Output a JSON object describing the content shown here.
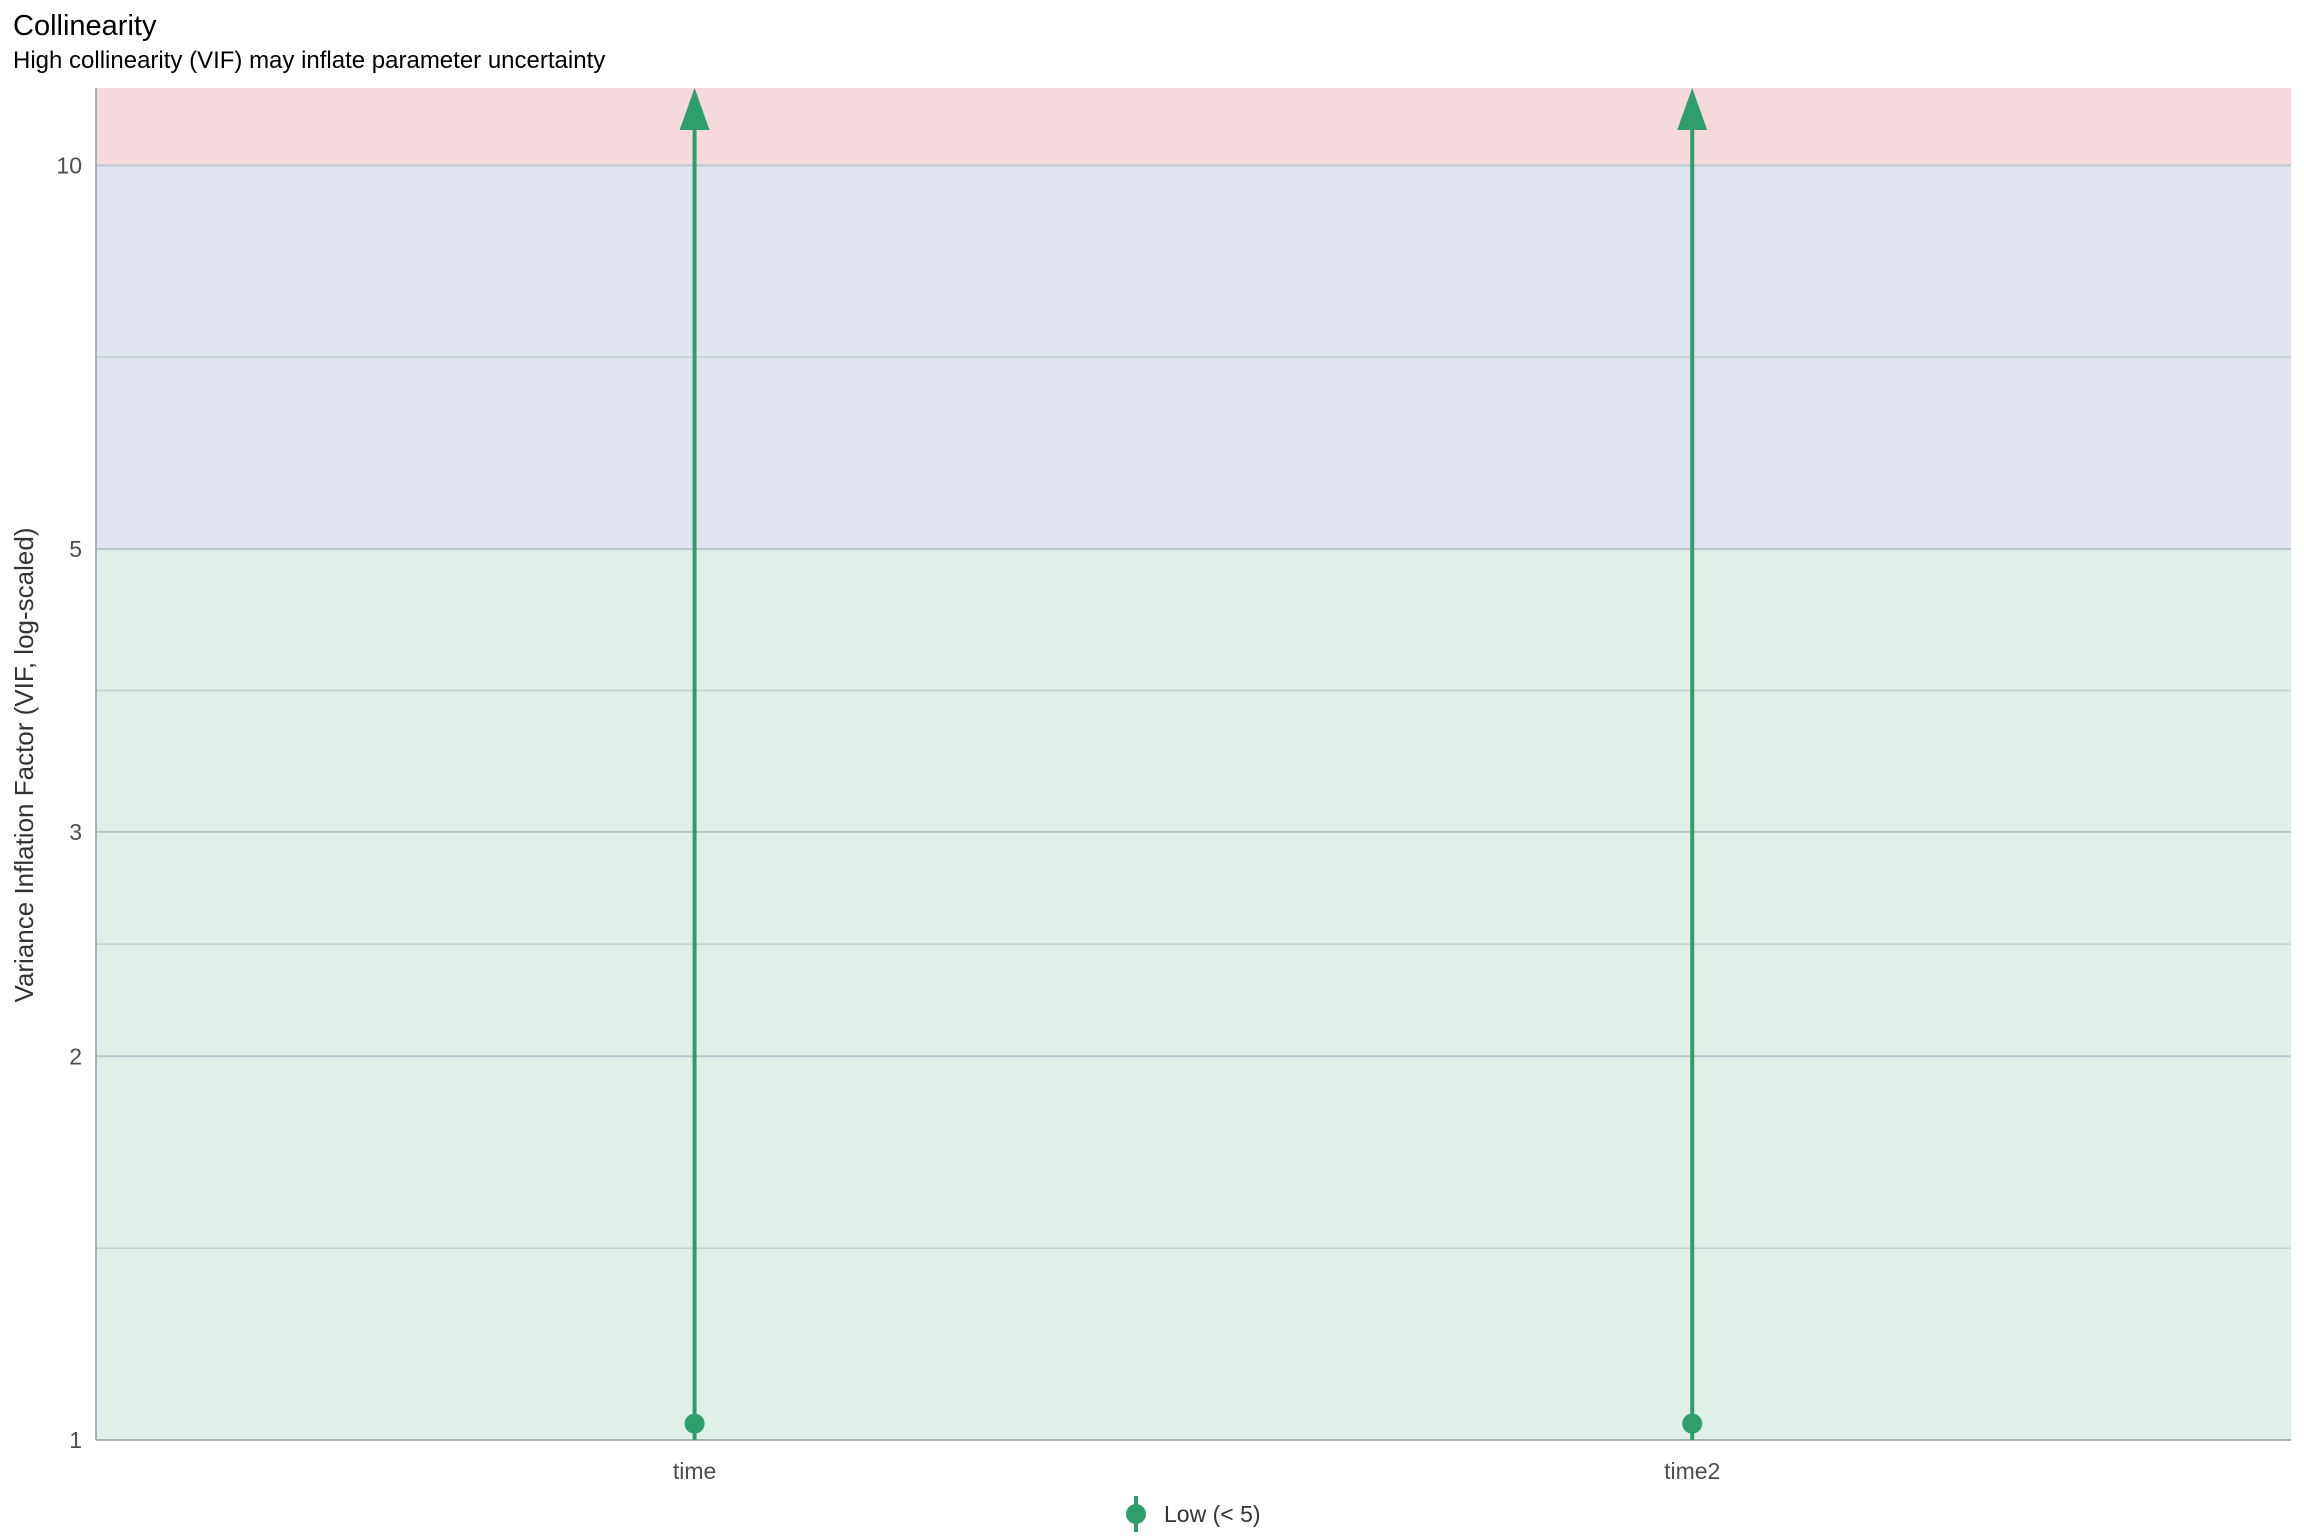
{
  "chart_data": {
    "type": "scatter",
    "title": "Collinearity",
    "subtitle": "High collinearity (VIF) may inflate parameter uncertainty",
    "xlabel": "",
    "ylabel": "Variance Inflation Factor (VIF, log-scaled)",
    "y_scale": "log",
    "ylim": [
      1,
      11.5
    ],
    "yticks": [
      1,
      2,
      3,
      5,
      10
    ],
    "y_minor_gridlines": [
      1.414,
      2.449,
      3.873,
      7.071
    ],
    "categories": [
      "time",
      "time2"
    ],
    "series": [
      {
        "name": "Low (< 5)",
        "color": "#2f9e6d",
        "points": [
          {
            "x": "time",
            "vif": 1.03,
            "ci_low": 1.0,
            "ci_high_exceeds_axis": true
          },
          {
            "x": "time2",
            "vif": 1.03,
            "ci_low": 1.0,
            "ci_high_exceeds_axis": true
          }
        ]
      }
    ],
    "bands": [
      {
        "from": 1,
        "to": 5,
        "color": "#e0f0e8"
      },
      {
        "from": 5,
        "to": 10,
        "color": "#dfe4ef"
      },
      {
        "from": 10,
        "to": 11.5,
        "color": "#f5d9dc"
      }
    ],
    "legend_position": "bottom",
    "grid": true
  }
}
